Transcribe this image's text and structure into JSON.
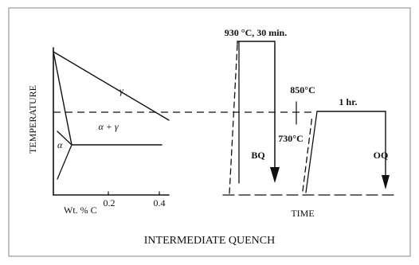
{
  "phase_diagram": {
    "y_axis_label": "TEMPERATURE",
    "x_axis_label": "Wt. % C",
    "x_ticks": [
      "0.2",
      "0.4"
    ],
    "region_gamma": "γ",
    "region_alpha_gamma": "α + γ",
    "region_alpha": "α"
  },
  "heat_treatment": {
    "step1_label": "930 °C, 30 min.",
    "step2_temp_label": "850°C",
    "step2_time_label": "1 hr.",
    "quench1_label": "BQ",
    "intermediate_temp_label": "730°C",
    "quench2_label": "OQ",
    "x_axis_label": "TIME"
  },
  "caption": "INTERMEDIATE QUENCH",
  "colors": {
    "ink": "#111111",
    "frame": "#9a9a9a",
    "background": "#ffffff"
  }
}
